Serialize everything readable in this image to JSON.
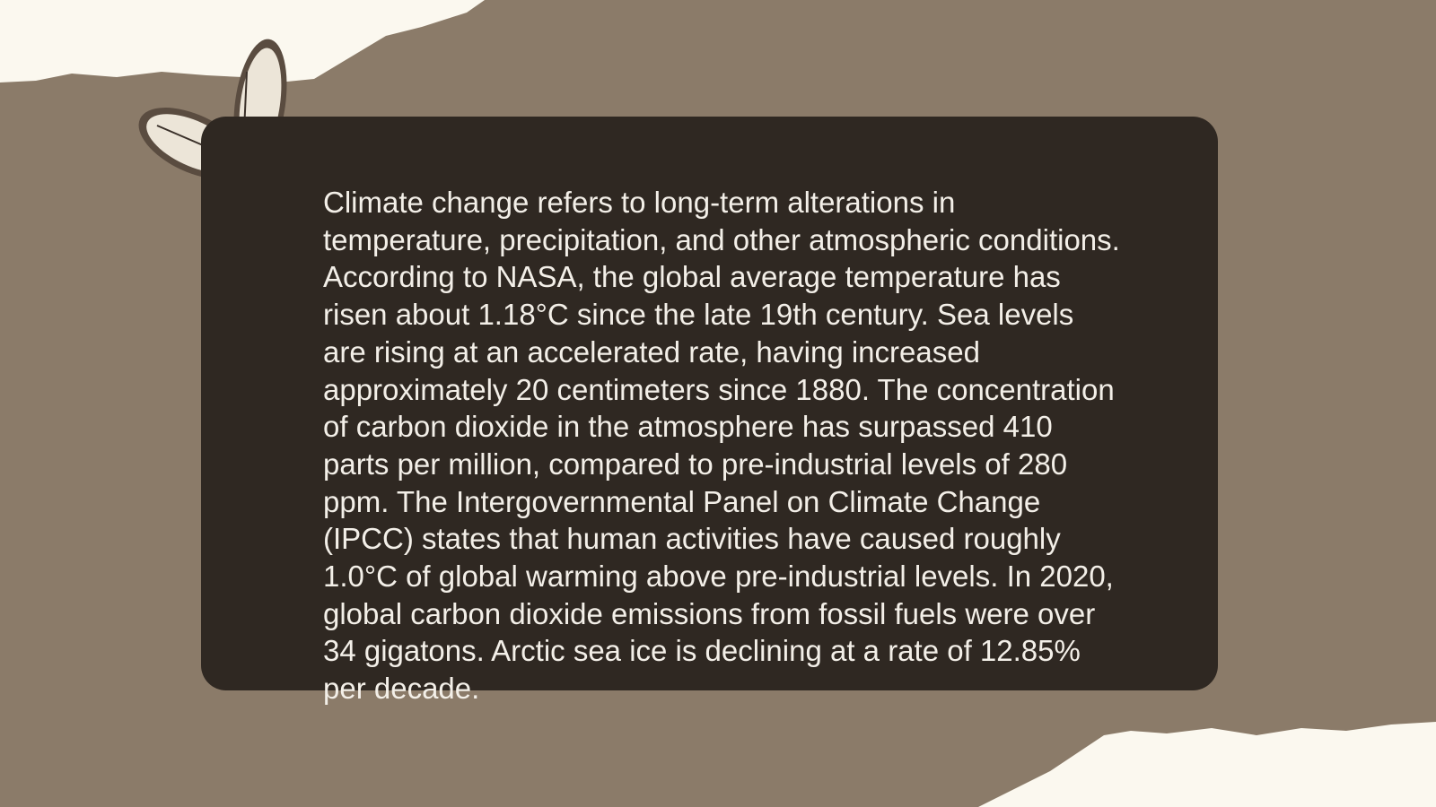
{
  "body": {
    "paragraph": "Climate change refers to long-term alterations in temperature, precipitation, and other atmospheric conditions. According to NASA, the global average temperature has risen about 1.18°C since the late 19th century. Sea levels are rising at an accelerated rate, having increased approximately 20 centimeters since 1880. The concentration of carbon dioxide in the atmosphere has surpassed 410 parts per million, compared to pre-industrial levels of 280 ppm. The Intergovernmental Panel on Climate Change (IPCC) states that human activities have caused roughly 1.0°C of global warming above pre-industrial levels. In 2020, global carbon dioxide emissions from fossil fuels were over 34 gigatons. Arctic sea ice is declining at a rate of 12.85% per decade."
  }
}
